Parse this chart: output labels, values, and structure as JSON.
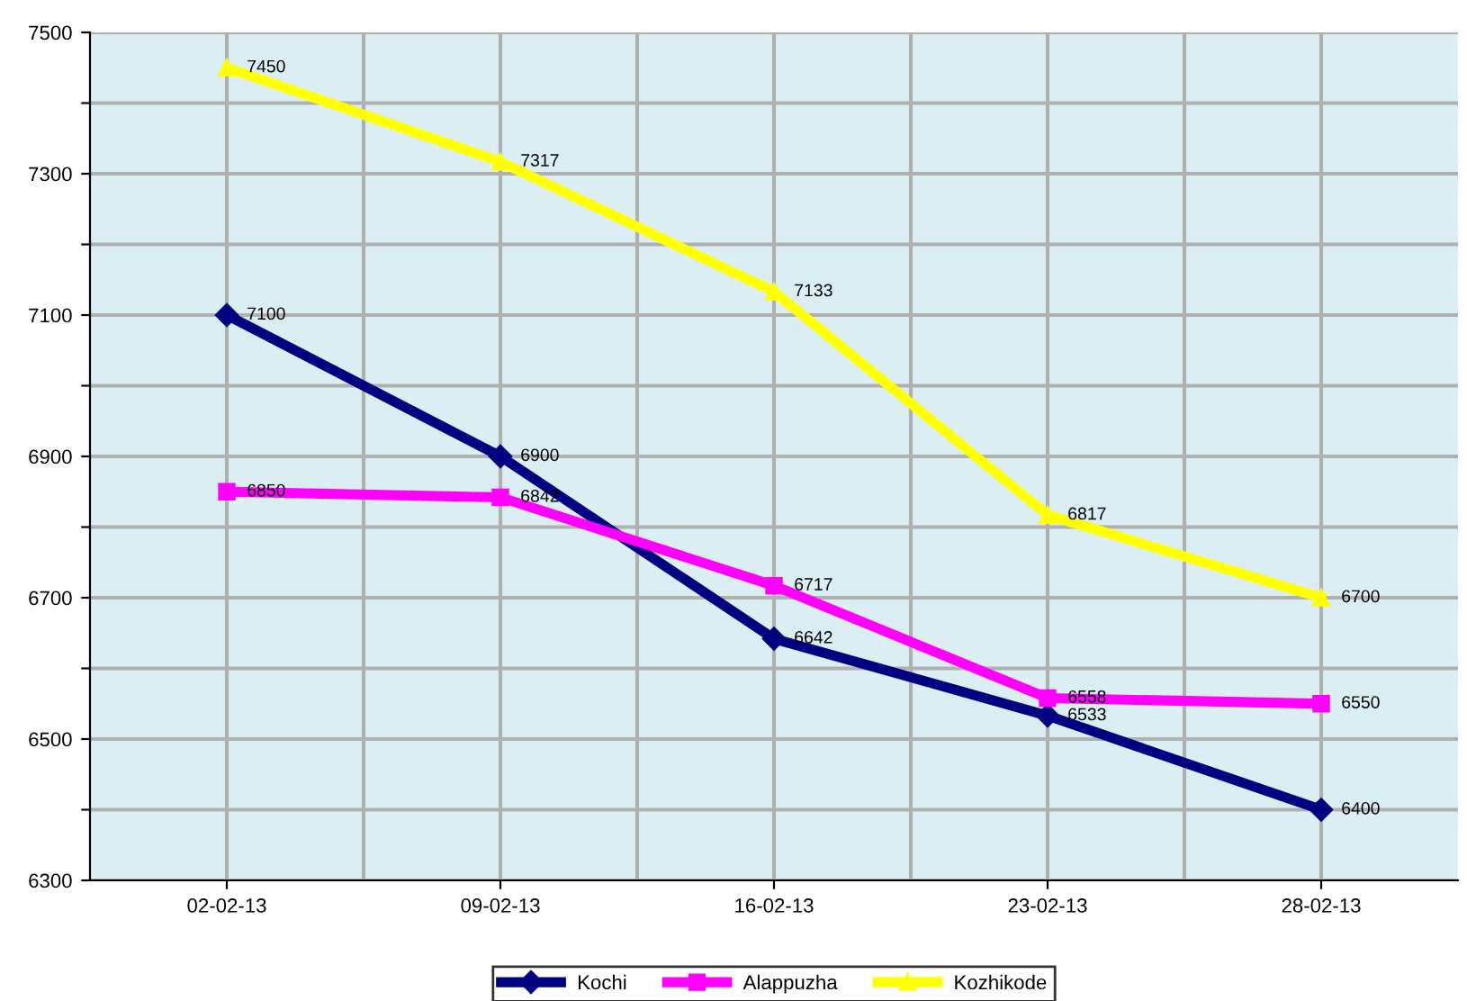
{
  "chart_data": {
    "type": "line",
    "categories": [
      "02-02-13",
      "09-02-13",
      "16-02-13",
      "23-02-13",
      "28-02-13"
    ],
    "series": [
      {
        "name": "Kochi",
        "color": "#000080",
        "marker": "diamond",
        "values": [
          7100,
          6900,
          6642,
          6533,
          6400
        ]
      },
      {
        "name": "Alappuzha",
        "color": "#ff00ff",
        "marker": "square",
        "values": [
          6850,
          6842,
          6717,
          6558,
          6550
        ]
      },
      {
        "name": "Kozhikode",
        "color": "#ffff00",
        "marker": "triangle",
        "values": [
          7450,
          7317,
          7133,
          6817,
          6700
        ]
      }
    ],
    "ylim": [
      6300,
      7500
    ],
    "yticks": [
      6300,
      {
        "value": 6400,
        "label": null
      },
      6500,
      {
        "value": 6600,
        "label": null
      },
      6700,
      {
        "value": 6800,
        "label": null
      },
      6900,
      {
        "value": 7000,
        "label": null
      },
      7100,
      {
        "value": 7200,
        "label": null
      },
      7300,
      {
        "value": 7400,
        "label": null
      },
      7500
    ],
    "grid": true,
    "data_labels": true,
    "legend": "bottom",
    "line_style": "solid"
  }
}
